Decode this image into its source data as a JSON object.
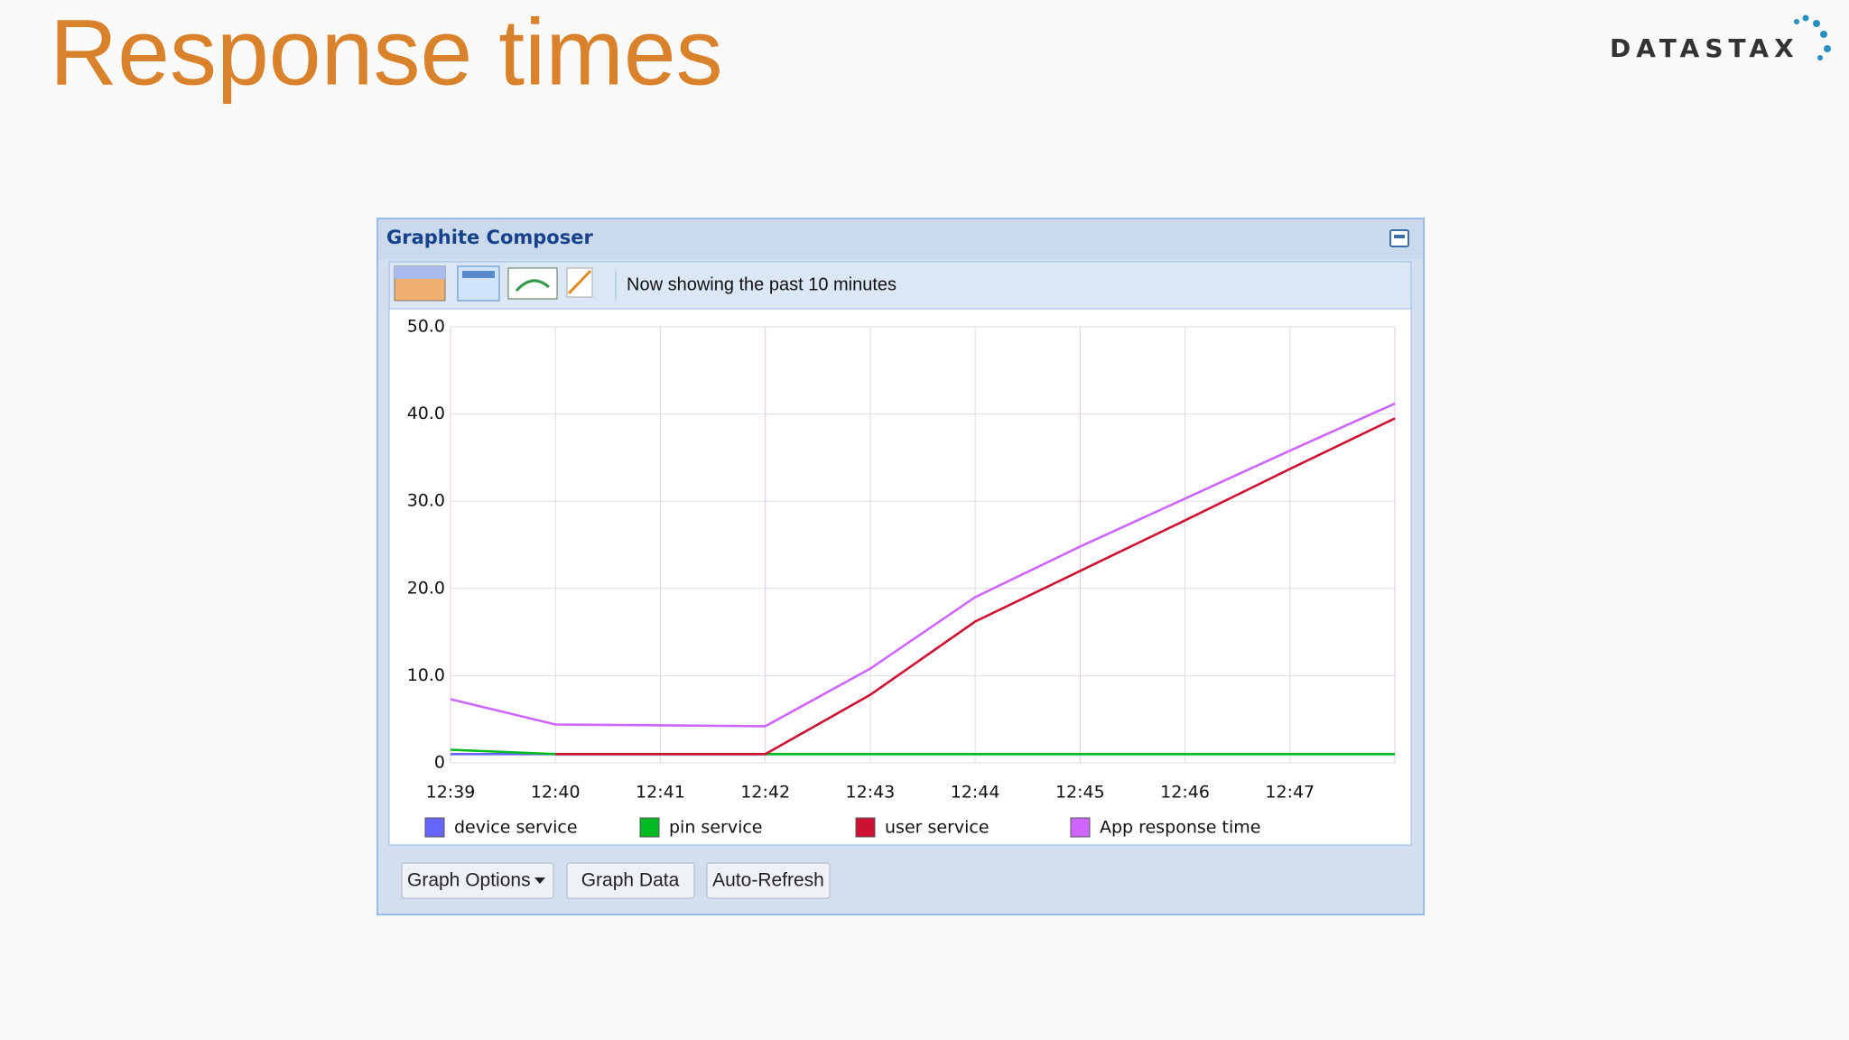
{
  "header": {
    "title": "Response times",
    "logo": "DATASTAX"
  },
  "window": {
    "title": "Graphite Composer",
    "status": "Now showing the past 10 minutes",
    "buttons": [
      "Graph Options",
      "Graph Data",
      "Auto-Refresh"
    ]
  },
  "chart_data": {
    "type": "line",
    "categories": [
      "12:39",
      "12:40",
      "12:41",
      "12:42",
      "12:43",
      "12:44",
      "12:45",
      "12:46",
      "12:47",
      null
    ],
    "ylim": [
      0,
      50
    ],
    "yticks": [
      0,
      {
        "value": 10,
        "label": "10.0"
      },
      {
        "value": 20,
        "label": "20.0"
      },
      {
        "value": 30,
        "label": "30.0"
      },
      {
        "value": 40,
        "label": "40.0"
      },
      {
        "value": 50,
        "label": "50.0"
      }
    ],
    "grid": true,
    "series": [
      {
        "name": "device service",
        "color": "#6666ff",
        "values": [
          1.0,
          1.0,
          1.0,
          1.0,
          1.0,
          1.0,
          1.0,
          1.0,
          1.0,
          1.0
        ]
      },
      {
        "name": "pin service",
        "color": "#00bb22",
        "values": [
          1.5,
          1.0,
          1.0,
          1.0,
          1.0,
          1.0,
          1.0,
          1.0,
          1.0,
          1.0
        ]
      },
      {
        "name": "user service",
        "color": "#cc1133",
        "values": [
          null,
          1.0,
          1.0,
          1.0,
          7.8,
          16.2,
          22.0,
          27.8,
          33.7,
          39.5
        ]
      },
      {
        "name": "App response time",
        "color": "#cc66ff",
        "values": [
          7.3,
          4.4,
          4.3,
          4.2,
          10.8,
          19.0,
          24.8,
          30.3,
          35.8,
          41.2
        ]
      }
    ]
  }
}
